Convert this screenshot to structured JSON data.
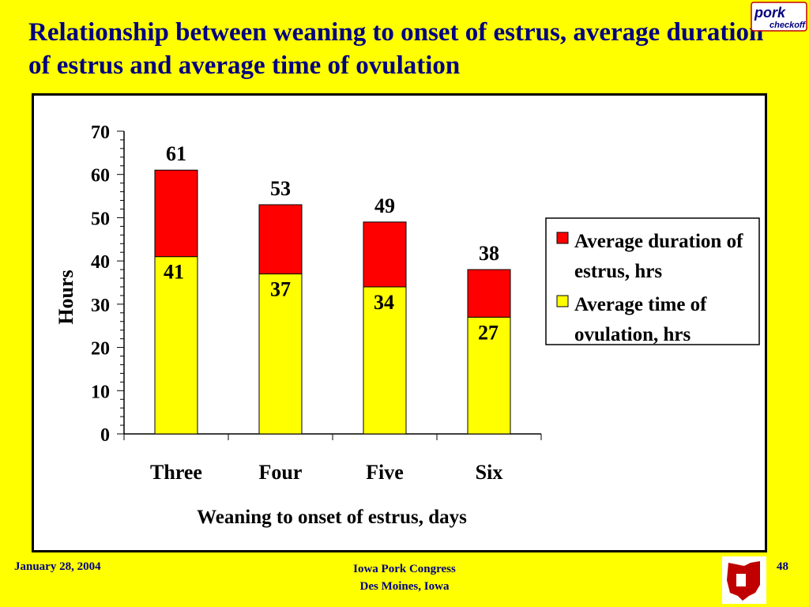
{
  "slide": {
    "title": "Relationship between weaning to onset of estrus, average duration of estrus and average time of ovulation",
    "logo_text_top": "pork",
    "logo_text_bottom": "checkoff",
    "footer_left": "January 28, 2004",
    "footer_center_line1": "Iowa Pork Congress",
    "footer_center_line2": "Des Moines, Iowa",
    "page_number": "48",
    "colors": {
      "background": "#ffff00",
      "title": "#000080"
    }
  },
  "chart_data": {
    "type": "bar",
    "stacked": true,
    "categories": [
      "Three",
      "Four",
      "Five",
      "Six"
    ],
    "series": [
      {
        "name": "Average time of ovulation, hrs",
        "values": [
          41,
          37,
          34,
          27
        ],
        "color": "#ffff00"
      },
      {
        "name": "Average duration of estrus, hrs",
        "values": [
          20,
          16,
          15,
          11
        ],
        "color": "#ff0000"
      }
    ],
    "totals": [
      61,
      53,
      49,
      38
    ],
    "legend": [
      {
        "line1": "Average duration of",
        "line2": "estrus, hrs",
        "color": "#ff0000"
      },
      {
        "line1": "Average time of",
        "line2": "ovulation, hrs",
        "color": "#ffff00"
      }
    ],
    "xlabel": "Weaning to onset of estrus, days",
    "ylabel": "Hours",
    "ylim": [
      0,
      70
    ],
    "yticks": [
      0,
      10,
      20,
      30,
      40,
      50,
      60,
      70
    ],
    "legend_position": "right",
    "grid": false
  }
}
